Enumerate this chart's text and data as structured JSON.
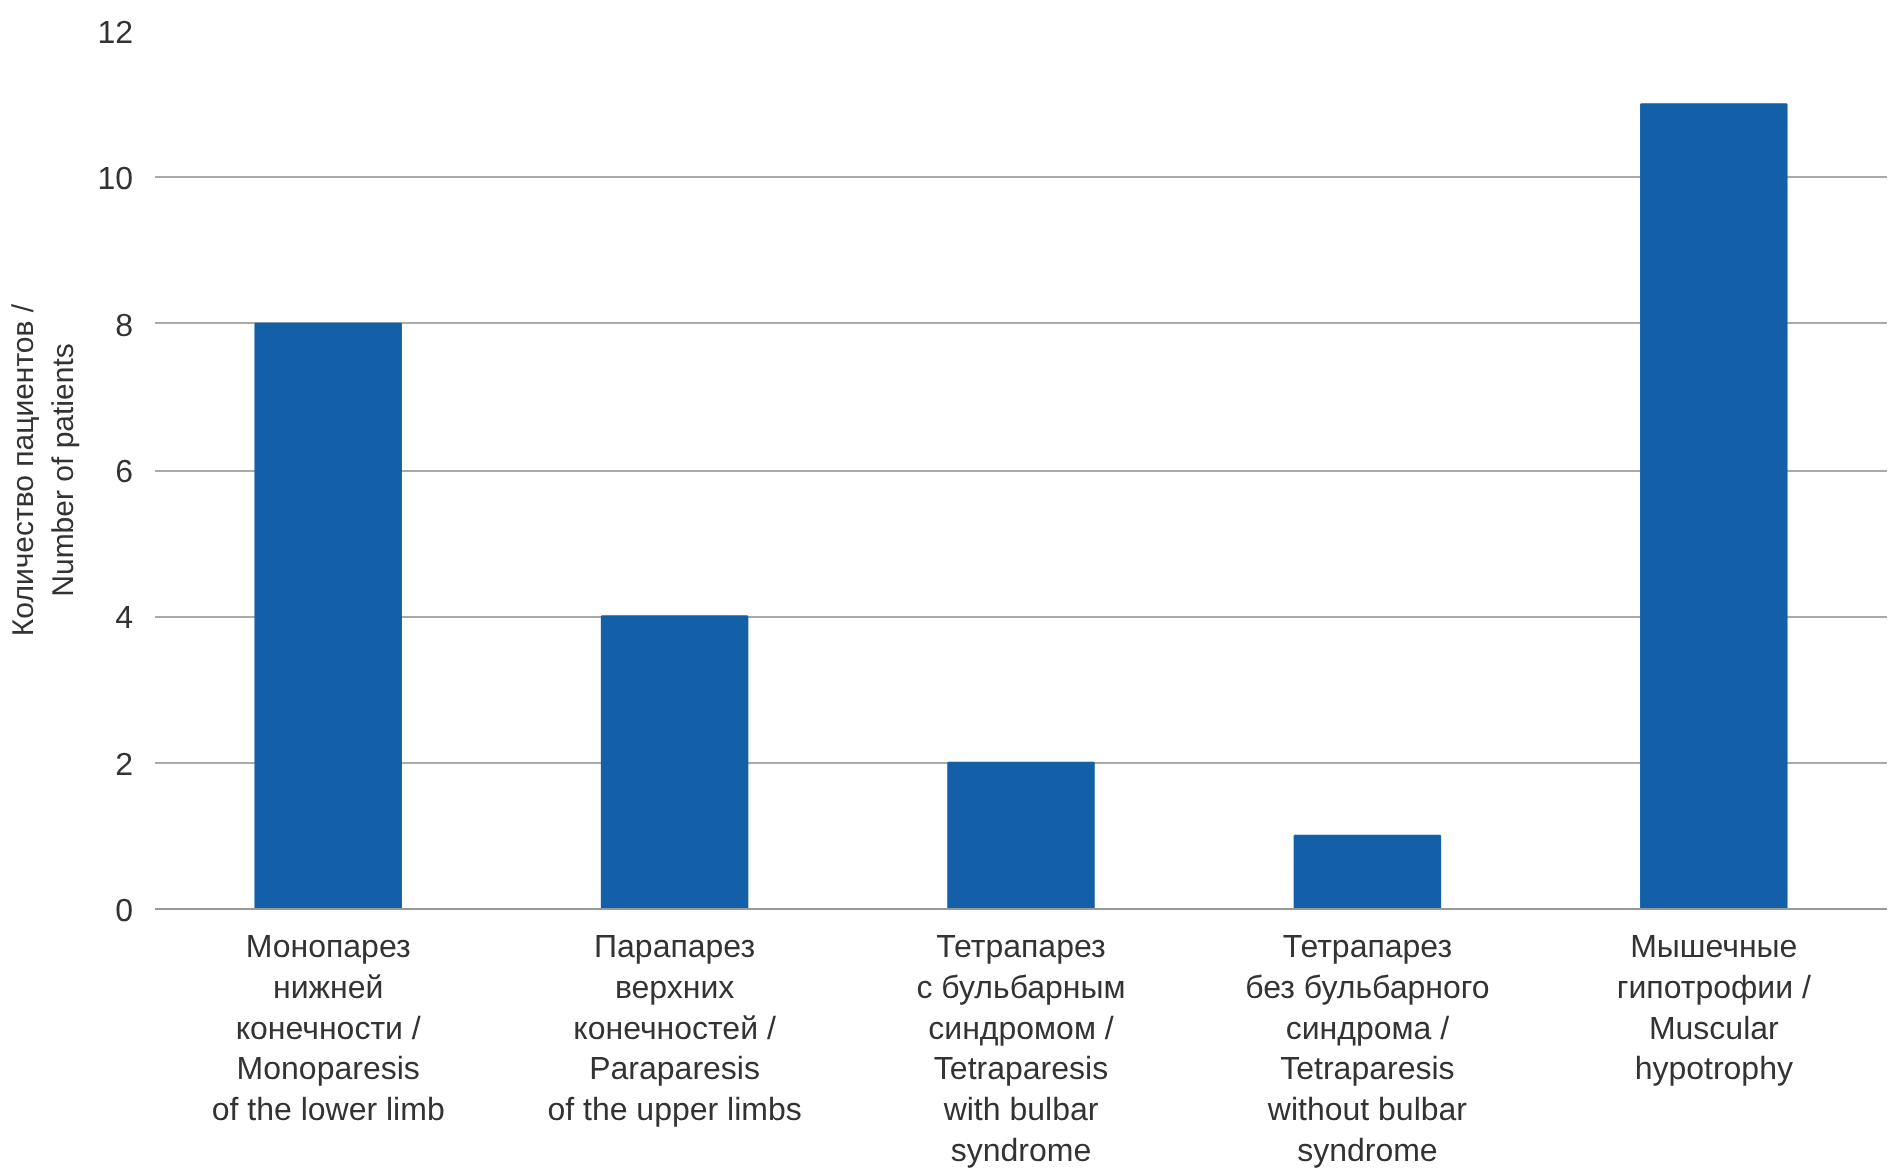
{
  "chart_data": {
    "type": "bar",
    "ylabel": "Количество пациентов /\nNumber of patients",
    "categories": [
      "Монопарез\nнижней\nконечности /\nMonoparesis\nof the lower limb",
      "Парапарез\nверхних\nконечностей /\nParaparesis\nof the upper limbs",
      "Тетрапарез\nс бульбарным\nсиндромом /\nTetraparesis\nwith bulbar\nsyndrome",
      "Тетрапарез\nбез бульбарного\nсиндрома /\nTetraparesis\nwithout bulbar\nsyndrome",
      "Мышечные\nгипотрофии /\nMuscular\nhypotrophy"
    ],
    "values": [
      8,
      4,
      2,
      1,
      11
    ],
    "color": "#1460a8",
    "ylim": [
      0,
      12
    ],
    "yticks": [
      0,
      2,
      4,
      6,
      8,
      10,
      12
    ],
    "grid": "y"
  }
}
